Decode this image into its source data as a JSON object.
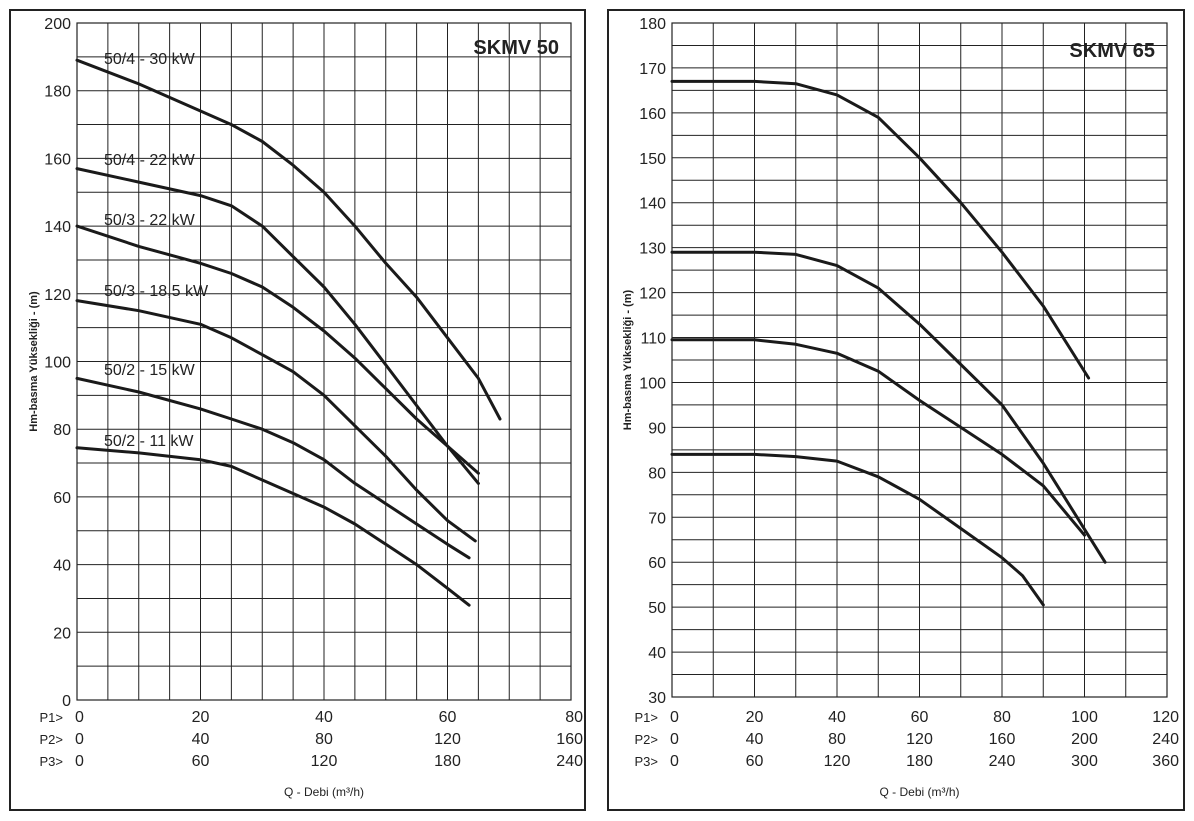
{
  "chart_data": [
    {
      "type": "line",
      "title": "SKMV 50",
      "ylabel": "Hm-basma Yüksekliği - (m)",
      "xlabel": "Q - Debi (m³/h)",
      "ylim": [
        0,
        200
      ],
      "yticks": [
        0,
        20,
        40,
        60,
        80,
        100,
        120,
        140,
        160,
        180,
        200
      ],
      "xlim": [
        0,
        80
      ],
      "grid": true,
      "x_scales": [
        {
          "label": "P1>",
          "ticks": [
            "0",
            "20",
            "40",
            "60",
            "80"
          ]
        },
        {
          "label": "P2>",
          "ticks": [
            "0",
            "40",
            "80",
            "120",
            "160"
          ]
        },
        {
          "label": "P3>",
          "ticks": [
            "0",
            "60",
            "120",
            "180",
            "240"
          ]
        }
      ],
      "series": [
        {
          "name": "50/4 - 30 kW",
          "x": [
            0,
            10,
            20,
            25,
            30,
            35,
            40,
            45,
            50,
            55,
            60,
            65,
            68.5
          ],
          "y": [
            189,
            182,
            174,
            170,
            165,
            158,
            150,
            140,
            129,
            119,
            107,
            95,
            83
          ]
        },
        {
          "name": "50/4 - 22 kW",
          "x": [
            0,
            10,
            20,
            25,
            30,
            35,
            40,
            45,
            50,
            55,
            60,
            65
          ],
          "y": [
            157,
            153,
            149,
            146,
            140,
            131,
            122,
            111,
            99,
            87,
            75,
            64
          ]
        },
        {
          "name": "50/3 - 22 kW",
          "x": [
            0,
            10,
            20,
            25,
            30,
            35,
            40,
            45,
            50,
            55,
            60,
            65
          ],
          "y": [
            140,
            134,
            129,
            126,
            122,
            116,
            109,
            101,
            92,
            83,
            75,
            67
          ]
        },
        {
          "name": "50/3 - 18,5 kW",
          "x": [
            0,
            10,
            20,
            25,
            30,
            35,
            40,
            45,
            50,
            55,
            60,
            64.5
          ],
          "y": [
            118,
            115,
            111,
            107,
            102,
            97,
            90,
            81,
            72,
            62,
            53,
            47
          ]
        },
        {
          "name": "50/2 - 15 kW",
          "x": [
            0,
            10,
            20,
            25,
            30,
            35,
            40,
            45,
            50,
            55,
            60,
            63.5
          ],
          "y": [
            95,
            91,
            86,
            83,
            80,
            76,
            71,
            64,
            58,
            52,
            46,
            42
          ]
        },
        {
          "name": "50/2 - 11 kW",
          "x": [
            0,
            10,
            20,
            25,
            30,
            35,
            40,
            45,
            50,
            55,
            60,
            63.5
          ],
          "y": [
            74.5,
            73,
            71,
            69,
            65,
            61,
            57,
            52,
            46,
            40,
            33,
            28
          ]
        }
      ]
    },
    {
      "type": "line",
      "title": "SKMV 65",
      "ylabel": "Hm-basma Yüksekliği - (m)",
      "xlabel": "Q - Debi (m³/h)",
      "ylim": [
        30,
        180
      ],
      "yticks": [
        30,
        40,
        50,
        60,
        70,
        80,
        90,
        100,
        110,
        120,
        130,
        140,
        150,
        160,
        170,
        180
      ],
      "xlim": [
        0,
        120
      ],
      "grid": true,
      "x_scales": [
        {
          "label": "P1>",
          "ticks": [
            "0",
            "20",
            "40",
            "60",
            "80",
            "100",
            "120"
          ]
        },
        {
          "label": "P2>",
          "ticks": [
            "0",
            "40",
            "80",
            "120",
            "160",
            "200",
            "240"
          ]
        },
        {
          "label": "P3>",
          "ticks": [
            "0",
            "60",
            "120",
            "180",
            "240",
            "300",
            "360"
          ]
        }
      ],
      "series": [
        {
          "x": [
            0,
            20,
            30,
            40,
            50,
            60,
            70,
            80,
            90,
            101
          ],
          "y": [
            167,
            167,
            166.5,
            164,
            159,
            150,
            140,
            129,
            117,
            101
          ]
        },
        {
          "x": [
            0,
            20,
            30,
            40,
            50,
            60,
            70,
            80,
            90,
            105
          ],
          "y": [
            129,
            129,
            128.5,
            126,
            121,
            113,
            104,
            95,
            82,
            60
          ]
        },
        {
          "x": [
            0,
            20,
            30,
            40,
            50,
            60,
            70,
            80,
            90,
            100
          ],
          "y": [
            109.5,
            109.5,
            108.5,
            106.5,
            102.5,
            96,
            90,
            84,
            77,
            66
          ]
        },
        {
          "x": [
            0,
            20,
            30,
            40,
            50,
            60,
            70,
            80,
            85,
            90
          ],
          "y": [
            84,
            84,
            83.5,
            82.5,
            79,
            74,
            67.5,
            61,
            57,
            50.5
          ]
        }
      ]
    }
  ],
  "labels": {
    "left_curves": [
      "50/4 - 30 kW",
      "50/4 - 22 kW",
      "50/3 - 22 kW",
      "50/3 - 18,5 kW",
      "50/2 - 15 kW",
      "50/2 - 11 kW"
    ]
  }
}
